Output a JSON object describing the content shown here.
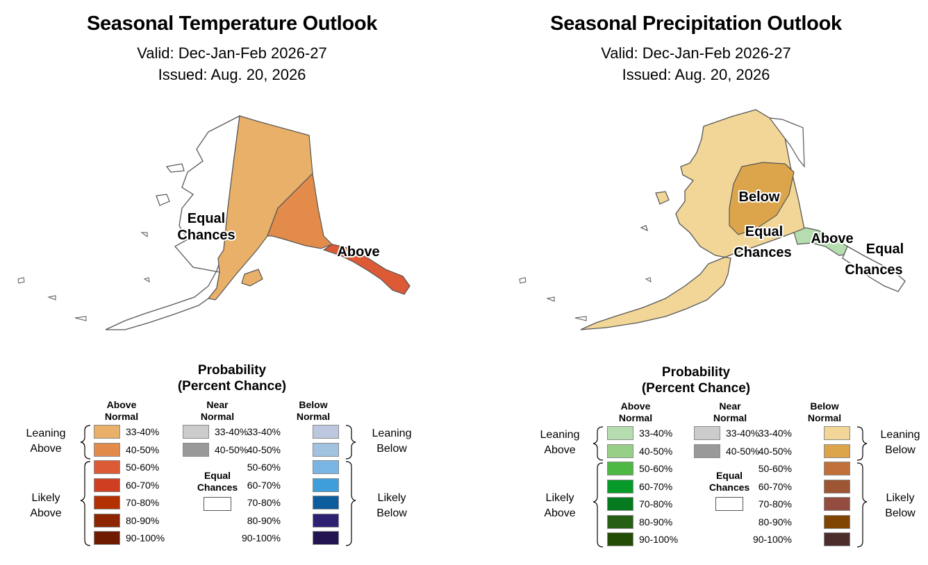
{
  "panels": [
    {
      "title": "Seasonal Temperature Outlook",
      "valid": "Valid: Dec-Jan-Feb 2026-27",
      "issued": "Issued: Aug. 20, 2026",
      "map_labels": {
        "a": {
          "line1": "Equal",
          "line2": "Chances"
        },
        "b": {
          "line1": "Above",
          "line2": ""
        }
      },
      "legend": {
        "title_line1": "Probability",
        "title_line2": "(Percent Chance)",
        "above_head_1": "Above",
        "above_head_2": "Normal",
        "near_head_1": "Near",
        "near_head_2": "Normal",
        "below_head_1": "Below",
        "below_head_2": "Normal",
        "equal_head_1": "Equal",
        "equal_head_2": "Chances",
        "leaning_left_1": "Leaning",
        "leaning_left_2": "Above",
        "likely_left_1": "Likely",
        "likely_left_2": "Above",
        "leaning_right_1": "Leaning",
        "leaning_right_2": "Below",
        "likely_right_1": "Likely",
        "likely_right_2": "Below",
        "above": [
          {
            "label": "33-40%",
            "color": "#E8B068"
          },
          {
            "label": "40-50%",
            "color": "#E38B4B"
          },
          {
            "label": "50-60%",
            "color": "#DC5A35"
          },
          {
            "label": "60-70%",
            "color": "#CF3E20"
          },
          {
            "label": "70-80%",
            "color": "#B33000"
          },
          {
            "label": "80-90%",
            "color": "#8C2500"
          },
          {
            "label": "90-100%",
            "color": "#6E1B00"
          }
        ],
        "near": [
          {
            "label": "33-40%",
            "color": "#CCCCCC"
          },
          {
            "label": "40-50%",
            "color": "#999999"
          }
        ],
        "below": [
          {
            "label": "33-40%",
            "color": "#BDC8E0"
          },
          {
            "label": "40-50%",
            "color": "#A2C2E2"
          },
          {
            "label": "50-60%",
            "color": "#78B4E4"
          },
          {
            "label": "60-70%",
            "color": "#3E9EDC"
          },
          {
            "label": "70-80%",
            "color": "#0D5D9E"
          },
          {
            "label": "80-90%",
            "color": "#2E2072"
          },
          {
            "label": "90-100%",
            "color": "#231552"
          }
        ]
      }
    },
    {
      "title": "Seasonal Precipitation Outlook",
      "valid": "Valid: Dec-Jan-Feb 2026-27",
      "issued": "Issued: Aug. 20, 2026",
      "map_labels": {
        "a": {
          "line1": "Below",
          "line2": ""
        },
        "b": {
          "line1": "Equal",
          "line2": "Chances"
        },
        "c": {
          "line1": "Above",
          "line2": ""
        },
        "d": {
          "line1": "Equal",
          "line2": "Chances"
        }
      },
      "legend": {
        "title_line1": "Probability",
        "title_line2": "(Percent Chance)",
        "above_head_1": "Above",
        "above_head_2": "Normal",
        "near_head_1": "Near",
        "near_head_2": "Normal",
        "below_head_1": "Below",
        "below_head_2": "Normal",
        "equal_head_1": "Equal",
        "equal_head_2": "Chances",
        "leaning_left_1": "Leaning",
        "leaning_left_2": "Above",
        "likely_left_1": "Likely",
        "likely_left_2": "Above",
        "leaning_right_1": "Leaning",
        "leaning_right_2": "Below",
        "likely_right_1": "Likely",
        "likely_right_2": "Below",
        "above": [
          {
            "label": "33-40%",
            "color": "#B6DDB0"
          },
          {
            "label": "40-50%",
            "color": "#98CF87"
          },
          {
            "label": "50-60%",
            "color": "#4DB843"
          },
          {
            "label": "60-70%",
            "color": "#089A28"
          },
          {
            "label": "70-80%",
            "color": "#057A1E"
          },
          {
            "label": "80-90%",
            "color": "#265E14"
          },
          {
            "label": "90-100%",
            "color": "#234D05"
          }
        ],
        "near": [
          {
            "label": "33-40%",
            "color": "#CCCCCC"
          },
          {
            "label": "40-50%",
            "color": "#999999"
          }
        ],
        "below": [
          {
            "label": "33-40%",
            "color": "#F1D697"
          },
          {
            "label": "40-50%",
            "color": "#DCA54B"
          },
          {
            "label": "50-60%",
            "color": "#C07038"
          },
          {
            "label": "60-70%",
            "color": "#9D5534"
          },
          {
            "label": "70-80%",
            "color": "#944C40"
          },
          {
            "label": "80-90%",
            "color": "#7F4402"
          },
          {
            "label": "90-100%",
            "color": "#4D2C2C"
          }
        ]
      }
    }
  ]
}
